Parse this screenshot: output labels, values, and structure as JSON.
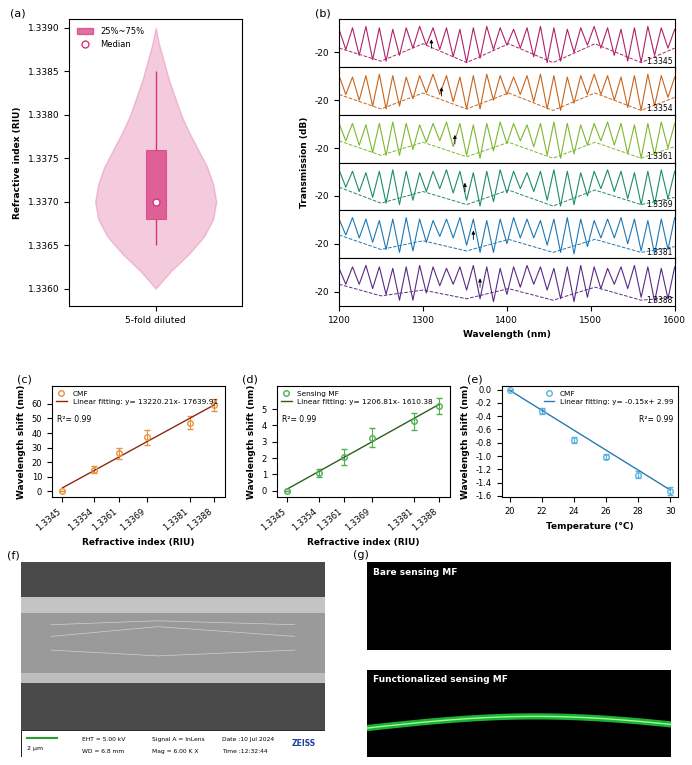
{
  "chart_data": [
    {
      "panel": "(a)",
      "type": "violin",
      "categories": [
        "5-fold diluted"
      ],
      "y_label": "Refractive index (RIU)",
      "ylim": [
        1.3358,
        1.3391
      ],
      "yticks": [
        {
          "value": 1.336,
          "label": "1.3360"
        },
        {
          "value": 1.3365,
          "label": "1.3365"
        },
        {
          "value": 1.337,
          "label": "1.3370"
        },
        {
          "value": 1.3375,
          "label": "1.3375"
        },
        {
          "value": 1.338,
          "label": "1.3380"
        },
        {
          "value": 1.3385,
          "label": "1.3385"
        },
        {
          "value": 1.339,
          "label": "1.3390"
        }
      ],
      "violin": {
        "y": [
          1.336,
          1.3362,
          1.3364,
          1.3366,
          1.3368,
          1.337,
          1.3372,
          1.3374,
          1.3376,
          1.3378,
          1.338,
          1.3382,
          1.3384,
          1.3386,
          1.3388,
          1.339
        ],
        "density": [
          0,
          0.25,
          0.55,
          0.8,
          0.95,
          1.0,
          0.95,
          0.85,
          0.7,
          0.55,
          0.42,
          0.32,
          0.22,
          0.14,
          0.06,
          0
        ]
      },
      "box": {
        "name": "25%~75%",
        "q1": 1.3368,
        "q3": 1.3376,
        "whisker_low": 1.3365,
        "whisker_high": 1.3385
      },
      "median": {
        "name": "Median",
        "value": 1.337
      },
      "color": "#d6337a",
      "legend": "upper left"
    },
    {
      "panel": "(b)",
      "type": "line",
      "x_label": "Wavelength (nm)",
      "y_label": "Transmission (dB)",
      "x": [
        1200,
        1208,
        1216,
        1224,
        1232,
        1240,
        1248,
        1256,
        1264,
        1272,
        1280,
        1288,
        1296,
        1304,
        1312,
        1320,
        1328,
        1336,
        1344,
        1352,
        1360,
        1368,
        1376,
        1384,
        1392,
        1400,
        1408,
        1416,
        1424,
        1432,
        1440,
        1448,
        1456,
        1464,
        1472,
        1480,
        1488,
        1496,
        1504,
        1512,
        1520,
        1528,
        1536,
        1544,
        1552,
        1560,
        1568,
        1576,
        1584,
        1592,
        1600
      ],
      "xlim": [
        1200,
        1600
      ],
      "xticks": [
        1200,
        1300,
        1400,
        1500,
        1600
      ],
      "ylim": [
        -30,
        3
      ],
      "yticks": [
        -20
      ],
      "envelope_x": [
        1200,
        1250,
        1300,
        1352,
        1402,
        1455,
        1505,
        1560,
        1600
      ],
      "series": [
        {
          "name": "1.3345",
          "color": "#b0226a",
          "arrow": 1310,
          "envelope": [
            -17,
            -26,
            -14,
            -27,
            -14,
            -27,
            -14,
            -27,
            -17
          ],
          "values": [
            -4,
            -18,
            -3,
            -22,
            -2,
            -25,
            -3,
            -26,
            -4,
            -22,
            -3,
            -17,
            -2,
            -15,
            -3,
            -18,
            -3,
            -23,
            -4,
            -27,
            -3,
            -24,
            -2,
            -18,
            -3,
            -15,
            -4,
            -17,
            -3,
            -23,
            -2,
            -27,
            -3,
            -26,
            -4,
            -20,
            -3,
            -15,
            -2,
            -17,
            -3,
            -22,
            -4,
            -26,
            -3,
            -27,
            -2,
            -22,
            -3,
            -17,
            -4
          ]
        },
        {
          "name": "1.3354",
          "color": "#c8651e",
          "arrow": 1322,
          "envelope": [
            -16,
            -26,
            -15,
            -26,
            -15,
            -27,
            -15,
            -27,
            -18
          ],
          "values": [
            -3,
            -16,
            -4,
            -20,
            -3,
            -24,
            -2,
            -26,
            -3,
            -24,
            -4,
            -19,
            -3,
            -15,
            -2,
            -16,
            -3,
            -21,
            -4,
            -26,
            -3,
            -26,
            -2,
            -20,
            -3,
            -16,
            -4,
            -16,
            -3,
            -21,
            -2,
            -26,
            -3,
            -27,
            -4,
            -22,
            -3,
            -16,
            -2,
            -16,
            -3,
            -20,
            -4,
            -25,
            -3,
            -27,
            -2,
            -24,
            -3,
            -18,
            -4
          ]
        },
        {
          "name": "1.3361",
          "color": "#7cb82f",
          "arrow": 1338,
          "envelope": [
            -15,
            -25,
            -16,
            -26,
            -16,
            -27,
            -16,
            -27,
            -19
          ],
          "values": [
            -3,
            -15,
            -3,
            -18,
            -4,
            -23,
            -3,
            -25,
            -2,
            -25,
            -3,
            -21,
            -4,
            -16,
            -3,
            -15,
            -2,
            -19,
            -3,
            -25,
            -4,
            -27,
            -3,
            -22,
            -2,
            -17,
            -3,
            -15,
            -4,
            -19,
            -3,
            -25,
            -2,
            -27,
            -3,
            -24,
            -4,
            -18,
            -3,
            -15,
            -2,
            -18,
            -3,
            -24,
            -4,
            -27,
            -3,
            -25,
            -2,
            -20,
            -3
          ]
        },
        {
          "name": "1.3369",
          "color": "#1e8c6e",
          "arrow": 1350,
          "envelope": [
            -14,
            -25,
            -17,
            -26,
            -16,
            -27,
            -16,
            -26,
            -21
          ],
          "values": [
            -2,
            -14,
            -3,
            -17,
            -4,
            -21,
            -3,
            -25,
            -2,
            -26,
            -3,
            -23,
            -4,
            -17,
            -3,
            -15,
            -2,
            -18,
            -3,
            -23,
            -4,
            -27,
            -3,
            -24,
            -2,
            -18,
            -3,
            -15,
            -4,
            -17,
            -3,
            -23,
            -2,
            -27,
            -3,
            -26,
            -4,
            -20,
            -3,
            -15,
            -2,
            -17,
            -3,
            -22,
            -4,
            -26,
            -3,
            -26,
            -2,
            -22,
            -3
          ]
        },
        {
          "name": "1.3381",
          "color": "#1f78b4",
          "arrow": 1360,
          "envelope": [
            -14,
            -24,
            -18,
            -25,
            -17,
            -26,
            -17,
            -26,
            -22
          ],
          "values": [
            -3,
            -14,
            -2,
            -16,
            -3,
            -19,
            -4,
            -24,
            -3,
            -26,
            -2,
            -25,
            -3,
            -19,
            -4,
            -15,
            -3,
            -16,
            -2,
            -21,
            -3,
            -26,
            -4,
            -26,
            -3,
            -20,
            -2,
            -16,
            -3,
            -16,
            -4,
            -21,
            -3,
            -26,
            -2,
            -27,
            -3,
            -22,
            -4,
            -16,
            -3,
            -16,
            -2,
            -20,
            -3,
            -25,
            -4,
            -27,
            -3,
            -24,
            -2
          ]
        },
        {
          "name": "1.3388",
          "color": "#5b2a86",
          "arrow": 1368,
          "envelope": [
            -15,
            -23,
            -19,
            -25,
            -18,
            -26,
            -17,
            -26,
            -24
          ],
          "values": [
            -4,
            -15,
            -3,
            -15,
            -2,
            -18,
            -3,
            -22,
            -4,
            -26,
            -3,
            -26,
            -2,
            -21,
            -3,
            -16,
            -4,
            -15,
            -3,
            -19,
            -2,
            -25,
            -3,
            -27,
            -4,
            -22,
            -3,
            -17,
            -2,
            -15,
            -3,
            -19,
            -4,
            -25,
            -3,
            -27,
            -2,
            -24,
            -3,
            -18,
            -4,
            -15,
            -3,
            -18,
            -2,
            -24,
            -3,
            -27,
            -4,
            -25,
            -3
          ]
        }
      ]
    },
    {
      "panel": "(c)",
      "type": "scatter",
      "x_label": "Refractive index (RIU)",
      "y_label": "Wavelength shift (nm)",
      "x": [
        1.3345,
        1.3354,
        1.3361,
        1.3369,
        1.3381,
        1.3388
      ],
      "xlim": [
        1.3342,
        1.3391
      ],
      "xticks": [
        1.3345,
        1.3354,
        1.3361,
        1.3369,
        1.3381,
        1.3388
      ],
      "ylim": [
        -4,
        72
      ],
      "yticks": [
        0,
        10,
        20,
        30,
        40,
        50,
        60
      ],
      "series": [
        {
          "name": "CMF",
          "color": "#e8913a",
          "marker": "circle",
          "values": [
            0,
            15,
            26,
            37,
            47,
            59
          ],
          "errors": [
            0,
            2.5,
            3.5,
            5,
            4.5,
            4
          ]
        },
        {
          "name": "Linear fitting: y= 13220.21x- 17639.91",
          "type": "line",
          "color": "#8b2a14",
          "slope": 13220.21,
          "intercept": -17639.91
        }
      ],
      "annotation": "R²= 0.99",
      "legend": "upper left"
    },
    {
      "panel": "(d)",
      "type": "scatter",
      "x_label": "Refractive index (RIU)",
      "y_label": "Wavelength shift (nm)",
      "x": [
        1.3345,
        1.3354,
        1.3361,
        1.3369,
        1.3381,
        1.3388
      ],
      "xlim": [
        1.3342,
        1.3391
      ],
      "xticks": [
        1.3345,
        1.3354,
        1.3361,
        1.3369,
        1.3381,
        1.3388
      ],
      "ylim": [
        -0.4,
        6.4
      ],
      "yticks": [
        0,
        1,
        2,
        3,
        4,
        5
      ],
      "series": [
        {
          "name": "Sensing MF",
          "color": "#4caf50",
          "marker": "circle",
          "values": [
            0,
            1.1,
            2.05,
            3.25,
            4.25,
            5.2
          ],
          "errors": [
            0,
            0.25,
            0.5,
            0.6,
            0.5,
            0.5
          ]
        },
        {
          "name": "Linear fitting: y= 1206.81x- 1610.38",
          "type": "line",
          "color": "#2e5e1e",
          "slope": 1206.81,
          "intercept": -1610.38
        }
      ],
      "annotation": "R²= 0.99",
      "legend": "upper left"
    },
    {
      "panel": "(e)",
      "type": "scatter",
      "x_label": "Temperature (°C)",
      "y_label": "Wavelength shift (nm)",
      "x": [
        20,
        22,
        24,
        26,
        28,
        30
      ],
      "xlim": [
        19.5,
        30.5
      ],
      "xticks": [
        20,
        22,
        24,
        26,
        28,
        30
      ],
      "ylim": [
        -1.62,
        0.05
      ],
      "yticks": [
        0.0,
        -0.2,
        -0.4,
        -0.6,
        -0.8,
        -1.0,
        -1.2,
        -1.4,
        -1.6
      ],
      "series": [
        {
          "name": "CMF",
          "color": "#5ab4e0",
          "marker": "circle",
          "values": [
            0,
            -0.32,
            -0.76,
            -1.01,
            -1.28,
            -1.52
          ],
          "errors": [
            0,
            0.04,
            0.05,
            0.04,
            0.05,
            0.06
          ]
        },
        {
          "name": "Linear fitting: y= -0.15x+ 2.99",
          "type": "line",
          "color": "#2a7ab0",
          "slope": -0.15,
          "intercept": 2.99
        }
      ],
      "annotation": "R²= 0.99",
      "legend": "upper right"
    }
  ],
  "images": [
    {
      "panel": "(f)",
      "scale_bar": "2 µm",
      "info": [
        "EHT = 5.00 kV",
        "WD = 6.8 mm",
        "Signal A = InLens",
        "Mag = 6.00 K X",
        "Date :10 Jul 2024",
        "Time :12:32:44"
      ],
      "brand": "ZEISS"
    },
    {
      "panel": "(g)",
      "panels": [
        "Bare sensing MF",
        "Functionalized sensing MF"
      ]
    }
  ]
}
